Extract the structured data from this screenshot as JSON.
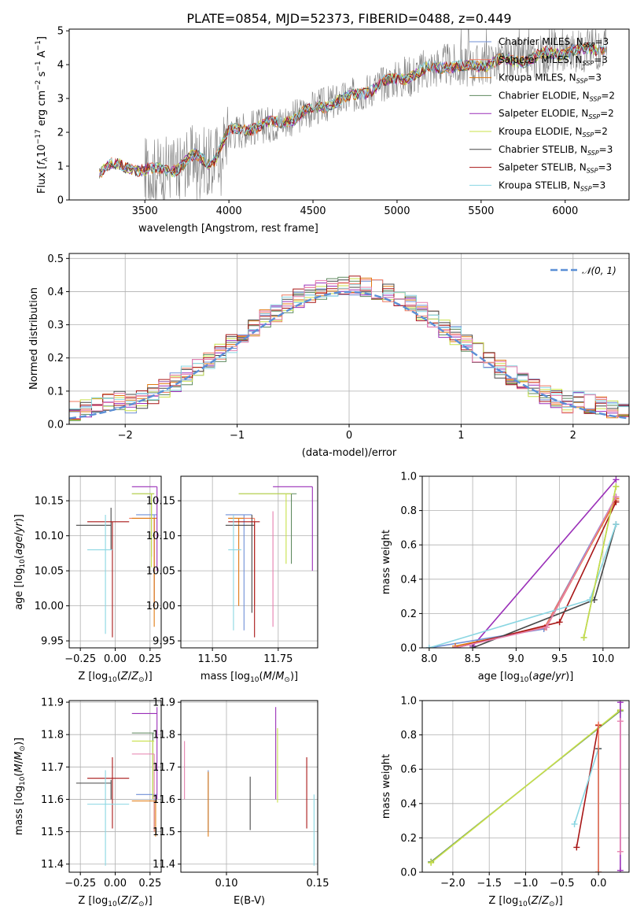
{
  "title": "PLATE=0854, MJD=52373, FIBERID=0488, z=0.449",
  "colors": {
    "Chabrier MILES": "#6f8fd6",
    "Salpeter MILES": "#ef7a60",
    "Kroupa MILES": "#e07a12",
    "Chabrier ELODIE": "#5f8a5f",
    "Salpeter ELODIE": "#9a2fb8",
    "Kroupa ELODIE": "#c8e04a",
    "Chabrier STELIB": "#474747",
    "Salpeter STELIB": "#a81616",
    "Kroupa STELIB": "#8ad6e2",
    "pink": "#e57fae",
    "gaussian": "#5b8fd6",
    "data": "#808080"
  },
  "legend_spectrum": [
    {
      "name": "Chabrier MILES",
      "label": "Chabrier MILES, N_SSP=3"
    },
    {
      "name": "Salpeter MILES",
      "label": "Salpeter MILES, N_SSP=3"
    },
    {
      "name": "Kroupa MILES",
      "label": "Kroupa MILES, N_SSP=3"
    },
    {
      "name": "Chabrier ELODIE",
      "label": "Chabrier ELODIE, N_SSP=2"
    },
    {
      "name": "Salpeter ELODIE",
      "label": "Salpeter ELODIE, N_SSP=2"
    },
    {
      "name": "Kroupa ELODIE",
      "label": "Kroupa ELODIE, N_SSP=2"
    },
    {
      "name": "Chabrier STELIB",
      "label": "Chabrier STELIB, N_SSP=3"
    },
    {
      "name": "Salpeter STELIB",
      "label": "Salpeter STELIB, N_SSP=3"
    },
    {
      "name": "Kroupa STELIB",
      "label": "Kroupa STELIB, N_SSP=3"
    }
  ],
  "legend_hist": "N(0,1)",
  "chart_data": [
    {
      "id": "spectrum",
      "type": "line",
      "xlabel": "wavelength [Angstrom, rest frame]",
      "ylabel": "Flux [f_λ 10^-17 erg cm^-2 s^-1 A^-1]",
      "xlim": [
        3050,
        6380
      ],
      "ylim": [
        0,
        5.05
      ],
      "xticks": [
        3500,
        4000,
        4500,
        5000,
        5500,
        6000
      ],
      "yticks": [
        0,
        1,
        2,
        3,
        4,
        5
      ],
      "model_continuum": [
        [
          3230,
          0.85
        ],
        [
          3300,
          1.0
        ],
        [
          3400,
          1.0
        ],
        [
          3500,
          0.85
        ],
        [
          3600,
          0.9
        ],
        [
          3700,
          0.95
        ],
        [
          3800,
          1.3
        ],
        [
          3900,
          1.1
        ],
        [
          4000,
          2.0
        ],
        [
          4100,
          2.1
        ],
        [
          4200,
          2.2
        ],
        [
          4300,
          2.3
        ],
        [
          4400,
          2.45
        ],
        [
          4500,
          2.7
        ],
        [
          4600,
          2.85
        ],
        [
          4700,
          3.0
        ],
        [
          4800,
          3.2
        ],
        [
          4900,
          3.4
        ],
        [
          5000,
          3.6
        ],
        [
          5100,
          3.7
        ],
        [
          5200,
          3.9
        ],
        [
          5300,
          4.0
        ],
        [
          5400,
          3.9
        ],
        [
          5500,
          4.0
        ],
        [
          5600,
          4.1
        ],
        [
          5700,
          4.1
        ],
        [
          5800,
          4.2
        ],
        [
          5900,
          4.3
        ],
        [
          6000,
          4.4
        ],
        [
          6100,
          4.4
        ],
        [
          6200,
          4.5
        ]
      ]
    },
    {
      "id": "residuals",
      "type": "histogram",
      "xlabel": "(data-model)/error",
      "ylabel": "Normed distribution",
      "xlim": [
        -2.5,
        2.5
      ],
      "ylim": [
        0,
        0.515
      ],
      "xticks": [
        -2,
        -1,
        0,
        1,
        2
      ],
      "yticks": [
        0.0,
        0.1,
        0.2,
        0.3,
        0.4,
        0.5
      ],
      "bin_width": 0.1
    },
    {
      "id": "age_vs_Z",
      "type": "errorbar",
      "xlabel": "Z [log10(Z/Z_sun)]",
      "ylabel": "age [log10(age/yr)]",
      "xlim": [
        -0.33,
        0.33
      ],
      "ylim": [
        9.94,
        10.185
      ],
      "xticks": [
        -0.25,
        0.0,
        0.25
      ],
      "xticklabels": [
        "−0.25",
        "0.00",
        "0.25"
      ],
      "yticks": [
        9.95,
        10.0,
        10.05,
        10.1,
        10.15
      ],
      "yticklabels": [
        "9.95",
        "10.00",
        "10.05",
        "10.10",
        "10.15"
      ],
      "points": [
        {
          "model": "Chabrier MILES",
          "x": 0.28,
          "x0": 0.15,
          "x1": 0.3,
          "y": 10.13,
          "y0": 10.0,
          "y1": 10.13
        },
        {
          "model": "Salpeter MILES",
          "x": 0.28,
          "x0": 0.1,
          "x1": 0.3,
          "y": 10.125,
          "y0": 10.0,
          "y1": 10.125
        },
        {
          "model": "Kroupa MILES",
          "x": 0.28,
          "x0": 0.12,
          "x1": 0.3,
          "y": 10.125,
          "y0": 9.97,
          "y1": 10.125
        },
        {
          "model": "Chabrier ELODIE",
          "x": 0.26,
          "x0": 0.12,
          "x1": 0.28,
          "y": 10.16,
          "y0": 10.07,
          "y1": 10.16
        },
        {
          "model": "Salpeter ELODIE",
          "x": 0.3,
          "x0": 0.12,
          "x1": 0.3,
          "y": 10.17,
          "y0": 10.05,
          "y1": 10.17
        },
        {
          "model": "Kroupa ELODIE",
          "x": 0.26,
          "x0": 0.12,
          "x1": 0.28,
          "y": 10.16,
          "y0": 10.055,
          "y1": 10.16
        },
        {
          "model": "Chabrier STELIB",
          "x": -0.03,
          "x0": -0.28,
          "x1": -0.03,
          "y": 10.115,
          "y0": 10.08,
          "y1": 10.14
        },
        {
          "model": "Salpeter STELIB",
          "x": -0.02,
          "x0": -0.2,
          "x1": 0.1,
          "y": 10.12,
          "y0": 9.955,
          "y1": 10.12
        },
        {
          "model": "Kroupa STELIB",
          "x": -0.07,
          "x0": -0.2,
          "x1": -0.02,
          "y": 10.08,
          "y0": 9.96,
          "y1": 10.13
        }
      ]
    },
    {
      "id": "age_vs_mass",
      "type": "errorbar",
      "xlabel": "mass [log10(M/M_sun)]",
      "ylabel": "",
      "xlim": [
        11.38,
        11.9
      ],
      "ylim": [
        9.94,
        10.185
      ],
      "xticks": [
        11.5,
        11.75
      ],
      "xticklabels": [
        "11.50",
        "11.75"
      ],
      "yticks": [
        9.95,
        10.0,
        10.05,
        10.1,
        10.15
      ],
      "yticklabels": [
        "9.95",
        "10.00",
        "10.05",
        "10.10",
        "10.15"
      ],
      "points": [
        {
          "model": "Chabrier MILES",
          "x": 11.62,
          "x0": 11.55,
          "x1": 11.65,
          "y": 10.13,
          "y0": 9.965,
          "y1": 10.13
        },
        {
          "model": "Salpeter MILES",
          "x": 11.66,
          "x0": 11.56,
          "x1": 11.66,
          "y": 10.125,
          "y0": 10.0,
          "y1": 10.125
        },
        {
          "model": "Kroupa MILES",
          "x": 11.6,
          "x0": 11.56,
          "x1": 11.62,
          "y": 10.125,
          "y0": 10.0,
          "y1": 10.125
        },
        {
          "model": "Chabrier ELODIE",
          "x": 11.8,
          "x0": 11.6,
          "x1": 11.82,
          "y": 10.16,
          "y0": 10.06,
          "y1": 10.16
        },
        {
          "model": "Salpeter ELODIE",
          "x": 11.88,
          "x0": 11.73,
          "x1": 11.88,
          "y": 10.17,
          "y0": 10.05,
          "y1": 10.17
        },
        {
          "model": "Kroupa ELODIE",
          "x": 11.78,
          "x0": 11.6,
          "x1": 11.8,
          "y": 10.16,
          "y0": 10.06,
          "y1": 10.16
        },
        {
          "model": "Chabrier STELIB",
          "x": 11.65,
          "x0": 11.55,
          "x1": 11.66,
          "y": 10.115,
          "y0": 9.99,
          "y1": 10.13
        },
        {
          "model": "Salpeter STELIB",
          "x": 11.66,
          "x0": 11.56,
          "x1": 11.68,
          "y": 10.12,
          "y0": 9.955,
          "y1": 10.12
        },
        {
          "model": "Kroupa STELIB",
          "x": 11.58,
          "x0": 11.56,
          "x1": 11.61,
          "y": 10.08,
          "y0": 9.965,
          "y1": 10.13
        },
        {
          "model": "pink",
          "x": 11.73,
          "x0": 11.73,
          "x1": 11.73,
          "y": 10.135,
          "y0": 9.97,
          "y1": 10.135
        }
      ]
    },
    {
      "id": "weight_vs_age",
      "type": "line",
      "xlabel": "age [log10(age/yr)]",
      "ylabel": "mass weight",
      "xlim": [
        7.92,
        10.3
      ],
      "ylim": [
        0,
        1.0
      ],
      "xticks": [
        8.0,
        8.5,
        9.0,
        9.5,
        10.0
      ],
      "xticklabels": [
        "8.0",
        "8.5",
        "9.0",
        "9.5",
        "10.0"
      ],
      "yticks": [
        0.0,
        0.2,
        0.4,
        0.6,
        0.8,
        1.0
      ],
      "yticklabels": [
        "0.0",
        "0.2",
        "0.4",
        "0.6",
        "0.8",
        "1.0"
      ],
      "series": [
        {
          "name": "Salpeter ELODIE",
          "points": [
            [
              8.5,
              0.01
            ],
            [
              10.15,
              0.98
            ]
          ]
        },
        {
          "name": "Chabrier MILES",
          "points": [
            [
              8.0,
              0.0
            ],
            [
              9.32,
              0.11
            ],
            [
              10.15,
              0.88
            ]
          ]
        },
        {
          "name": "Salpeter MILES",
          "points": [
            [
              8.3,
              0.0
            ],
            [
              9.33,
              0.12
            ],
            [
              10.15,
              0.86
            ]
          ]
        },
        {
          "name": "Kroupa MILES",
          "points": [
            [
              8.3,
              0.01
            ],
            [
              9.35,
              0.12
            ],
            [
              10.15,
              0.87
            ]
          ]
        },
        {
          "name": "Salpeter STELIB",
          "points": [
            [
              8.3,
              0.0
            ],
            [
              9.5,
              0.15
            ],
            [
              10.15,
              0.85
            ]
          ]
        },
        {
          "name": "Chabrier STELIB",
          "points": [
            [
              8.5,
              0.0
            ],
            [
              9.9,
              0.28
            ],
            [
              10.15,
              0.72
            ]
          ]
        },
        {
          "name": "Kroupa STELIB",
          "points": [
            [
              8.0,
              0.0
            ],
            [
              9.85,
              0.28
            ],
            [
              10.15,
              0.72
            ]
          ]
        },
        {
          "name": "Chabrier ELODIE",
          "points": [
            [
              9.78,
              0.06
            ],
            [
              10.15,
              0.94
            ]
          ]
        },
        {
          "name": "Kroupa ELODIE",
          "points": [
            [
              9.78,
              0.06
            ],
            [
              10.15,
              0.94
            ]
          ]
        },
        {
          "name": "pink",
          "points": [
            [
              8.3,
              0.0
            ],
            [
              9.35,
              0.12
            ],
            [
              10.15,
              0.88
            ]
          ]
        }
      ]
    },
    {
      "id": "mass_vs_Z",
      "type": "errorbar",
      "xlabel": "Z [log10(Z/Z_sun)]",
      "ylabel": "mass [log10(M/M_sun)]",
      "xlim": [
        -0.33,
        0.33
      ],
      "ylim": [
        11.375,
        11.905
      ],
      "xticks": [
        -0.25,
        0.0,
        0.25
      ],
      "xticklabels": [
        "−0.25",
        "0.00",
        "0.25"
      ],
      "yticks": [
        11.4,
        11.5,
        11.6,
        11.7,
        11.8,
        11.9
      ],
      "yticklabels": [
        "11.4",
        "11.5",
        "11.6",
        "11.7",
        "11.8",
        "11.9"
      ],
      "points": [
        {
          "model": "Chabrier MILES",
          "x": 0.28,
          "x0": 0.15,
          "x1": 0.3,
          "y": 11.615,
          "y0": 11.5,
          "y1": 11.615
        },
        {
          "model": "Salpeter MILES",
          "x": 0.28,
          "x0": 0.12,
          "x1": 0.3,
          "y": 11.595,
          "y0": 11.5,
          "y1": 11.595
        },
        {
          "model": "Kroupa MILES",
          "x": 0.29,
          "x0": 0.12,
          "x1": 0.3,
          "y": 11.595,
          "y0": 11.485,
          "y1": 11.595
        },
        {
          "model": "Chabrier ELODIE",
          "x": 0.27,
          "x0": 0.12,
          "x1": 0.28,
          "y": 11.805,
          "y0": 11.6,
          "y1": 11.805
        },
        {
          "model": "Salpeter ELODIE",
          "x": 0.3,
          "x0": 0.12,
          "x1": 0.3,
          "y": 11.865,
          "y0": 11.6,
          "y1": 11.885
        },
        {
          "model": "Kroupa ELODIE",
          "x": 0.27,
          "x0": 0.12,
          "x1": 0.28,
          "y": 11.78,
          "y0": 11.6,
          "y1": 11.78
        },
        {
          "model": "pink",
          "x": 0.28,
          "x0": 0.12,
          "x1": 0.28,
          "y": 11.74,
          "y0": 11.6,
          "y1": 11.74
        },
        {
          "model": "Chabrier STELIB",
          "x": -0.03,
          "x0": -0.28,
          "x1": -0.03,
          "y": 11.65,
          "y0": 11.6,
          "y1": 11.66
        },
        {
          "model": "Salpeter STELIB",
          "x": -0.02,
          "x0": -0.2,
          "x1": 0.1,
          "y": 11.665,
          "y0": 11.51,
          "y1": 11.73
        },
        {
          "model": "Kroupa STELIB",
          "x": -0.07,
          "x0": -0.2,
          "x1": 0.1,
          "y": 11.585,
          "y0": 11.395,
          "y1": 11.69
        }
      ]
    },
    {
      "id": "mass_vs_ebv",
      "type": "errorbar",
      "xlabel": "E(B-V)",
      "ylabel": "",
      "xlim": [
        0.075,
        0.15
      ],
      "ylim": [
        11.375,
        11.905
      ],
      "xticks": [
        0.1,
        0.15
      ],
      "xticklabels": [
        "0.10",
        "0.15"
      ],
      "yticks": [
        11.4,
        11.5,
        11.6,
        11.7,
        11.8,
        11.9
      ],
      "yticklabels": [
        "11.4",
        "11.5",
        "11.6",
        "11.7",
        "11.8",
        "11.9"
      ],
      "points": [
        {
          "model": "pink",
          "x": 0.077,
          "y": 11.69,
          "y0": 11.6,
          "y1": 11.78
        },
        {
          "model": "Chabrier MILES",
          "x": 0.09,
          "y": 11.6,
          "y0": 11.5,
          "y1": 11.69
        },
        {
          "model": "Kroupa MILES",
          "x": 0.09,
          "y": 11.585,
          "y0": 11.485,
          "y1": 11.685
        },
        {
          "model": "Chabrier STELIB",
          "x": 0.113,
          "y": 11.59,
          "y0": 11.505,
          "y1": 11.67
        },
        {
          "model": "Salpeter ELODIE",
          "x": 0.127,
          "y": 11.79,
          "y0": 11.6,
          "y1": 11.885
        },
        {
          "model": "Kroupa ELODIE",
          "x": 0.128,
          "y": 11.7,
          "y0": 11.59,
          "y1": 11.82
        },
        {
          "model": "Salpeter STELIB",
          "x": 0.144,
          "y": 11.62,
          "y0": 11.51,
          "y1": 11.73
        },
        {
          "model": "Kroupa STELIB",
          "x": 0.148,
          "y": 11.5,
          "y0": 11.395,
          "y1": 11.615
        }
      ]
    },
    {
      "id": "weight_vs_Z",
      "type": "line",
      "xlabel": "Z [log10(Z/Z_sun)]",
      "ylabel": "mass weight",
      "xlim": [
        -2.42,
        0.42
      ],
      "ylim": [
        0,
        1.0
      ],
      "xticks": [
        -2.0,
        -1.5,
        -1.0,
        -0.5,
        0.0
      ],
      "xticklabels": [
        "−2.0",
        "−1.5",
        "−1.0",
        "−0.5",
        "0.0"
      ],
      "yticks": [
        0.0,
        0.2,
        0.4,
        0.6,
        0.8,
        1.0
      ],
      "yticklabels": [
        "0.0",
        "0.2",
        "0.4",
        "0.6",
        "0.8",
        "1.0"
      ],
      "series": [
        {
          "name": "Chabrier ELODIE",
          "points": [
            [
              -2.3,
              0.06
            ],
            [
              0.3,
              0.94
            ]
          ]
        },
        {
          "name": "Kroupa ELODIE",
          "points": [
            [
              -2.3,
              0.055
            ],
            [
              0.3,
              0.945
            ]
          ]
        },
        {
          "name": "Salpeter STELIB",
          "points": [
            [
              -0.3,
              0.145
            ],
            [
              0.0,
              0.855
            ]
          ]
        },
        {
          "name": "Kroupa STELIB",
          "points": [
            [
              -0.33,
              0.28
            ],
            [
              0.0,
              0.72
            ]
          ]
        },
        {
          "name": "Chabrier STELIB",
          "points": [
            [
              0.0,
              0.0
            ],
            [
              0.0,
              0.72
            ]
          ]
        },
        {
          "name": "Salpeter MILES",
          "points": [
            [
              0.0,
              0.0
            ],
            [
              0.0,
              0.86
            ]
          ]
        },
        {
          "name": "Salpeter ELODIE",
          "points": [
            [
              0.3,
              0.01
            ],
            [
              0.3,
              0.99
            ]
          ]
        },
        {
          "name": "pink",
          "points": [
            [
              0.3,
              0.12
            ],
            [
              0.3,
              0.88
            ]
          ]
        }
      ]
    }
  ]
}
